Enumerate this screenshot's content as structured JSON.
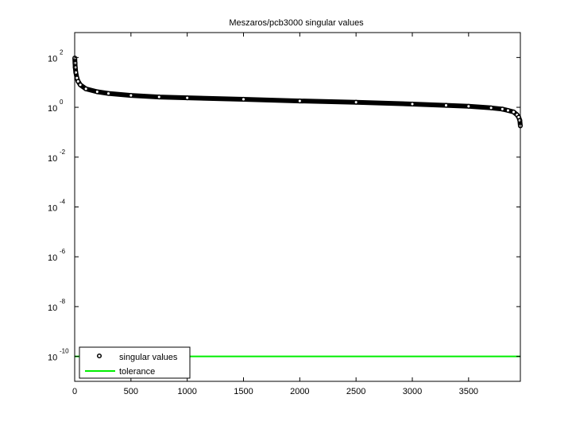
{
  "chart_data": {
    "type": "scatter",
    "title": "Meszaros/pcb3000 singular values",
    "xlabel": "",
    "ylabel": "",
    "xlim": [
      0,
      3960
    ],
    "ylim": [
      1e-11,
      1000.0
    ],
    "yscale": "log",
    "grid": false,
    "legend_position": "bottom-left",
    "x_ticks": [
      0,
      500,
      1000,
      1500,
      2000,
      2500,
      3000,
      3500
    ],
    "y_tick_exponents": [
      2,
      0,
      -2,
      -4,
      -6,
      -8,
      -10
    ],
    "y_tick_base": "10",
    "series": [
      {
        "name": "singular values",
        "marker": "circle",
        "color": "#000000",
        "x": [
          1,
          3,
          5,
          10,
          20,
          30,
          50,
          100,
          200,
          300,
          500,
          750,
          1000,
          1500,
          2000,
          2500,
          3000,
          3300,
          3500,
          3700,
          3800,
          3850,
          3900,
          3930,
          3945,
          3955,
          3960
        ],
        "y": [
          95,
          60,
          40,
          25,
          15,
          11,
          8,
          5.5,
          4.2,
          3.6,
          3.0,
          2.6,
          2.4,
          2.1,
          1.8,
          1.6,
          1.35,
          1.2,
          1.1,
          0.95,
          0.85,
          0.75,
          0.65,
          0.5,
          0.4,
          0.3,
          0.18
        ]
      },
      {
        "name": "tolerance",
        "marker": "line",
        "color": "#00ee00",
        "x": [
          0,
          3960
        ],
        "y": [
          1e-10,
          1e-10
        ]
      }
    ]
  }
}
